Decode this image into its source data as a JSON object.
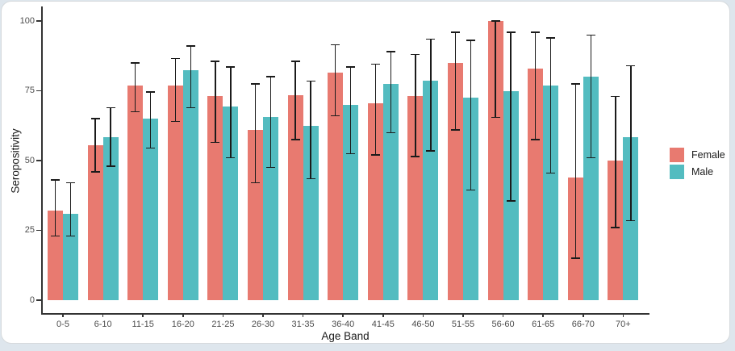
{
  "chart_data": {
    "type": "bar",
    "title": "",
    "xlabel": "Age Band",
    "ylabel": "Seropositivity",
    "ylim": [
      0,
      100
    ],
    "yticks": [
      0,
      25,
      50,
      75,
      100
    ],
    "grid": false,
    "legend_position": "right",
    "error_bars": true,
    "categories": [
      "0-5",
      "6-10",
      "11-15",
      "16-20",
      "21-25",
      "26-30",
      "31-35",
      "36-40",
      "41-45",
      "46-50",
      "51-55",
      "56-60",
      "61-65",
      "66-70",
      "70+"
    ],
    "series": [
      {
        "name": "Female",
        "color": "#E87A70",
        "values": [
          32,
          55.5,
          77,
          77,
          73,
          61,
          73.5,
          81.5,
          70.5,
          73,
          85,
          100,
          83,
          44,
          50
        ],
        "ci_low": [
          23,
          46,
          67.5,
          64,
          56.5,
          42,
          57.5,
          66,
          52,
          51.5,
          61,
          65.5,
          57.5,
          15,
          26
        ],
        "ci_high": [
          43,
          65,
          85,
          86.5,
          85.5,
          77.5,
          85.5,
          91.5,
          84.5,
          88,
          96,
          100,
          96,
          77.5,
          73
        ]
      },
      {
        "name": "Male",
        "color": "#53BCC0",
        "values": [
          31,
          58.5,
          65,
          82.5,
          69.5,
          65.5,
          62.5,
          70,
          77.5,
          78.5,
          72.5,
          75,
          77,
          80,
          58.5
        ],
        "ci_low": [
          23,
          48,
          54.5,
          69,
          51,
          47.5,
          43.5,
          52.5,
          60,
          53.5,
          39.5,
          35.5,
          45.5,
          51,
          28.5
        ],
        "ci_high": [
          42,
          69,
          74.5,
          91,
          83.5,
          80,
          78.5,
          83.5,
          89,
          93.5,
          93,
          96,
          94,
          95,
          84
        ]
      }
    ],
    "error_bar_color": "#1b1b1b",
    "axis_color": "#333333",
    "tick_label_color": "#4d4d4d"
  }
}
